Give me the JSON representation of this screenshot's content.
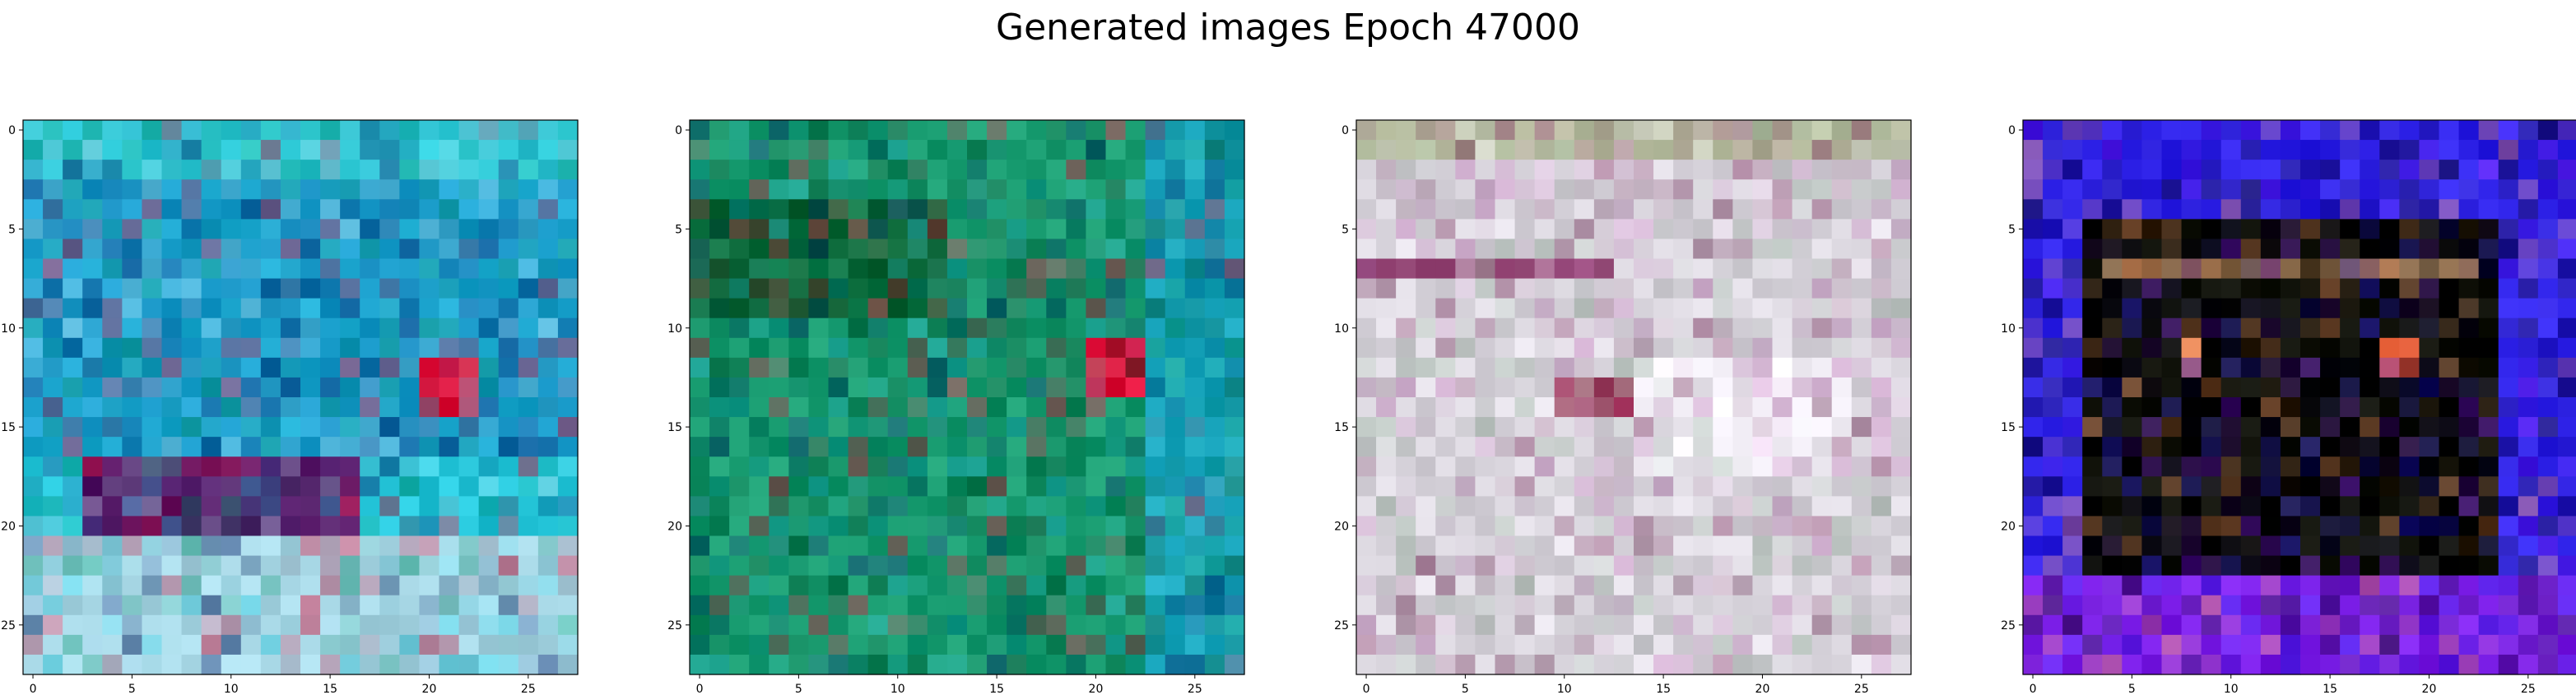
{
  "figure": {
    "title": "Generated images Epoch 47000"
  },
  "chart_data": [
    {
      "type": "heatmap",
      "grid_size": [
        28,
        28
      ],
      "xlim": [
        0,
        27
      ],
      "ylim": [
        0,
        27
      ],
      "y_inverted": true,
      "x_ticks": [
        0,
        5,
        10,
        15,
        20,
        25
      ],
      "y_ticks": [
        0,
        5,
        10,
        15,
        20,
        25
      ],
      "palette": {
        "bg": "#23c4d8",
        "accent1": "#0a1f6a",
        "accent2": "#e0103a",
        "accent3": "#a8d8e6",
        "accent4": "#12a07a"
      },
      "zones": [
        {
          "rows": [
            0,
            2
          ],
          "cols": [
            0,
            27
          ],
          "color": "#2ec9d6"
        },
        {
          "rows": [
            3,
            16
          ],
          "cols": [
            0,
            27
          ],
          "color": "#1a9ccc"
        },
        {
          "rows": [
            17,
            20
          ],
          "cols": [
            3,
            16
          ],
          "color": "#5a1a6a"
        },
        {
          "rows": [
            12,
            14
          ],
          "cols": [
            20,
            22
          ],
          "color": "#e0103a"
        },
        {
          "rows": [
            21,
            27
          ],
          "cols": [
            0,
            27
          ],
          "color": "#a6d6e4"
        }
      ]
    },
    {
      "type": "heatmap",
      "grid_size": [
        28,
        28
      ],
      "xlim": [
        0,
        27
      ],
      "ylim": [
        0,
        27
      ],
      "y_inverted": true,
      "x_ticks": [
        0,
        5,
        10,
        15,
        20,
        25
      ],
      "y_ticks": [
        0,
        5,
        10,
        15,
        20,
        25
      ],
      "palette": {
        "bg": "#169a6e",
        "accent1": "#0b5a34",
        "accent2": "#1aa3b8",
        "accent3": "#e0103a",
        "accent4": "#0a2a6a"
      },
      "zones": [
        {
          "rows": [
            4,
            9
          ],
          "cols": [
            0,
            12
          ],
          "color": "#0b6a3a"
        },
        {
          "rows": [
            11,
            13
          ],
          "cols": [
            20,
            22
          ],
          "color": "#e0103a"
        },
        {
          "rows": [
            0,
            27
          ],
          "cols": [
            23,
            27
          ],
          "color": "#1aa8c0"
        }
      ]
    },
    {
      "type": "heatmap",
      "grid_size": [
        28,
        28
      ],
      "xlim": [
        0,
        27
      ],
      "ylim": [
        0,
        27
      ],
      "y_inverted": true,
      "x_ticks": [
        0,
        5,
        10,
        15,
        20,
        25
      ],
      "y_ticks": [
        0,
        5,
        10,
        15,
        20,
        25
      ],
      "palette": {
        "bg": "#d8d4dc",
        "accent1": "#c07ab8",
        "accent2": "#9ab4a0",
        "accent3": "#7a2a5a",
        "accent4": "#f0ecf4"
      },
      "zones": [
        {
          "rows": [
            0,
            1
          ],
          "cols": [
            0,
            27
          ],
          "color": "#b8c0a0"
        },
        {
          "rows": [
            7,
            7
          ],
          "cols": [
            0,
            12
          ],
          "color": "#8a3a6a"
        },
        {
          "rows": [
            12,
            17
          ],
          "cols": [
            14,
            24
          ],
          "color": "#f2eef6"
        },
        {
          "rows": [
            13,
            14
          ],
          "cols": [
            10,
            13
          ],
          "color": "#a0305a"
        }
      ]
    },
    {
      "type": "heatmap",
      "grid_size": [
        28,
        28
      ],
      "xlim": [
        0,
        27
      ],
      "ylim": [
        0,
        27
      ],
      "y_inverted": true,
      "x_ticks": [
        0,
        5,
        10,
        15,
        20,
        25
      ],
      "y_ticks": [
        0,
        5,
        10,
        15,
        20,
        25
      ],
      "palette": {
        "bg": "#2e22e8",
        "accent1": "#0a0a02",
        "accent2": "#7a18e8",
        "accent3": "#e88a5a",
        "accent4": "#18103a"
      },
      "zones": [
        {
          "rows": [
            5,
            22
          ],
          "cols": [
            3,
            23
          ],
          "color": "#080a02"
        },
        {
          "rows": [
            7,
            7
          ],
          "cols": [
            4,
            22
          ],
          "color": "#8a6a4a"
        },
        {
          "rows": [
            11,
            12
          ],
          "cols": [
            8,
            8
          ],
          "color": "#e88a5a"
        },
        {
          "rows": [
            11,
            12
          ],
          "cols": [
            18,
            19
          ],
          "color": "#f0603a"
        },
        {
          "rows": [
            23,
            27
          ],
          "cols": [
            0,
            27
          ],
          "color": "#7a1ee6"
        }
      ]
    }
  ]
}
